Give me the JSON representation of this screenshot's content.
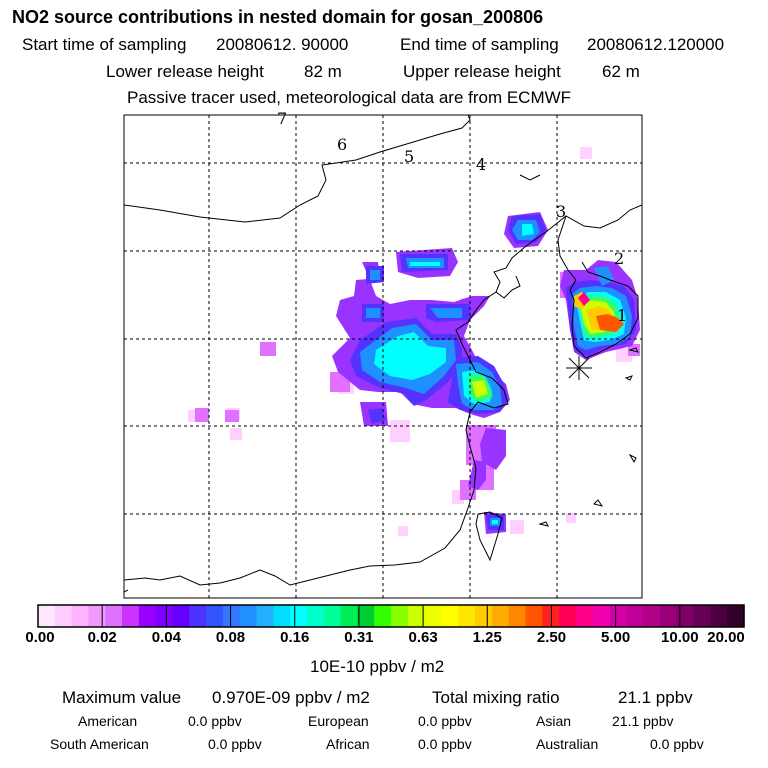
{
  "title": "NO2 source contributions in nested domain for gosan_200806",
  "sampling": {
    "start_label": "Start time of sampling",
    "start_value": "20080612. 90000",
    "end_label": "End time of sampling",
    "end_value": "20080612.120000"
  },
  "release": {
    "lower_label": "Lower release height",
    "lower_value": "82 m",
    "upper_label": "Upper release height",
    "upper_value": "62 m"
  },
  "note": "Passive tracer used, meteorological data are from ECMWF",
  "map": {
    "region_labels": [
      "1",
      "2",
      "3",
      "4",
      "5",
      "6",
      "7"
    ],
    "receptor_marker": "asterisk"
  },
  "colorbar": {
    "ticks": [
      "0.00",
      "0.02",
      "0.04",
      "0.08",
      "0.16",
      "0.31",
      "0.63",
      "1.25",
      "2.50",
      "5.00",
      "10.00",
      "20.00"
    ],
    "unit": "10E-10 ppbv / m2",
    "colors": [
      "#ffe6ff",
      "#ffccff",
      "#ffb3ff",
      "#f099ff",
      "#e070ff",
      "#cc33ff",
      "#9900ff",
      "#7f00ff",
      "#6600ff",
      "#4d33ff",
      "#3355ff",
      "#3377ff",
      "#1e90ff",
      "#22b0ff",
      "#00ddff",
      "#00ffff",
      "#00ffcc",
      "#00ff99",
      "#00ee55",
      "#00cc33",
      "#33ff00",
      "#88ff00",
      "#ccff00",
      "#eeff00",
      "#ffff00",
      "#ffe600",
      "#ffcc00",
      "#ffaa00",
      "#ff8800",
      "#ff5500",
      "#ff2020",
      "#ff0055",
      "#ff0088",
      "#ee00aa",
      "#d400a8",
      "#c00099",
      "#b30088",
      "#990077",
      "#800066",
      "#660055",
      "#4d0040",
      "#33002b"
    ]
  },
  "stats": {
    "max_label": "Maximum value",
    "max_value": "0.970E-09 ppbv / m2",
    "total_label": "Total mixing ratio",
    "total_value": "21.1 ppbv",
    "regions": [
      {
        "name": "American",
        "value": "0.0 ppbv"
      },
      {
        "name": "European",
        "value": "0.0 ppbv"
      },
      {
        "name": "Asian",
        "value": "21.1 ppbv"
      },
      {
        "name": "South American",
        "value": "0.0 ppbv"
      },
      {
        "name": "African",
        "value": "0.0 ppbv"
      },
      {
        "name": "Australian",
        "value": "0.0 ppbv"
      }
    ]
  }
}
